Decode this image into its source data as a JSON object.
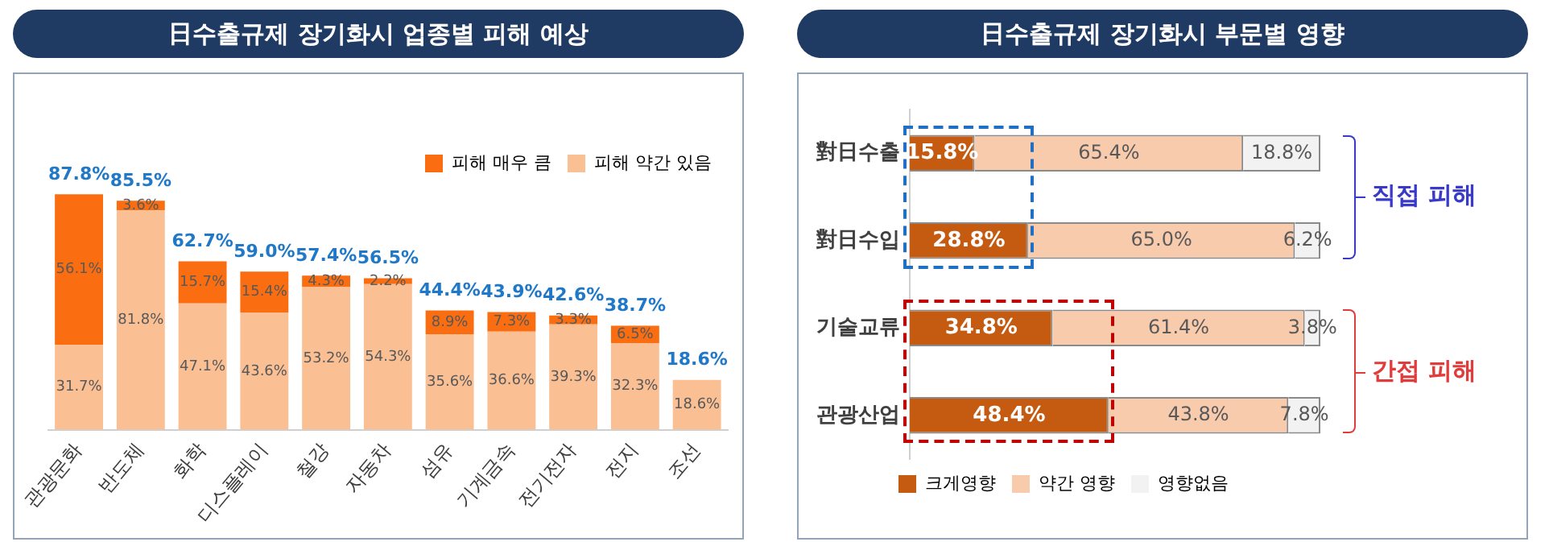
{
  "chart_data": [
    {
      "type": "bar",
      "title": "日수출규제 장기화시 업종별 피해 예상",
      "stacked": true,
      "legend": "top right",
      "tick_labels": "x",
      "categories": [
        "관광문화",
        "반도체",
        "화학",
        "디스플레이",
        "철강",
        "자동차",
        "섬유",
        "기계금속",
        "전기전자",
        "전지",
        "조선"
      ],
      "series": [
        {
          "name": "피해 약간 있음",
          "color": "#fbbf94",
          "values": [
            31.7,
            81.8,
            47.1,
            43.6,
            53.2,
            54.3,
            35.6,
            36.6,
            39.3,
            32.3,
            18.6
          ],
          "value_labels": [
            "31.7%",
            "81.8%",
            "47.1%",
            "43.6%",
            "53.2%",
            "54.3%",
            "35.6%",
            "36.6%",
            "39.3%",
            "32.3%",
            "18.6%"
          ]
        },
        {
          "name": "피해 매우 큼",
          "color": "#fa6d10",
          "values": [
            56.1,
            3.6,
            15.7,
            15.4,
            4.3,
            2.2,
            8.9,
            7.3,
            3.3,
            6.5,
            null
          ],
          "value_labels": [
            "56.1%",
            "3.6%",
            "15.7%",
            "15.4%",
            "4.3%",
            "2.2%",
            "8.9%",
            "7.3%",
            "3.3%",
            "6.5%",
            null
          ]
        }
      ],
      "totals": [
        "87.8%",
        "85.5%",
        "62.7%",
        "59.0%",
        "57.4%",
        "56.5%",
        "44.4%",
        "43.9%",
        "42.6%",
        "38.7%",
        "18.6%"
      ]
    },
    {
      "type": "bar",
      "title": "日수출규제 장기화시 부문별 영향",
      "stacked": true,
      "orientation": "horizontal",
      "legend": "bottom",
      "tick_labels": "y",
      "categories": [
        "對日수출",
        "對日수입",
        "기술교류",
        "관광산업"
      ],
      "series": [
        {
          "name": "크게영향",
          "color": "#c55a11",
          "values": [
            15.8,
            28.8,
            34.8,
            48.4
          ],
          "value_labels": [
            "15.8%",
            "28.8%",
            "34.8%",
            "48.4%"
          ]
        },
        {
          "name": "약간 영향",
          "color": "#f8cbad",
          "values": [
            65.4,
            65.0,
            61.4,
            43.8
          ],
          "value_labels": [
            "65.4%",
            "65.0%",
            "61.4%",
            "43.8%"
          ]
        },
        {
          "name": "영향없음",
          "color": "#f2f2f2",
          "values": [
            18.8,
            6.2,
            3.8,
            7.8
          ],
          "value_labels": [
            "18.8%",
            "6.2%",
            "3.8%",
            "7.8%"
          ]
        }
      ],
      "annotations": [
        "직접 피해",
        "간접 피해"
      ]
    }
  ]
}
